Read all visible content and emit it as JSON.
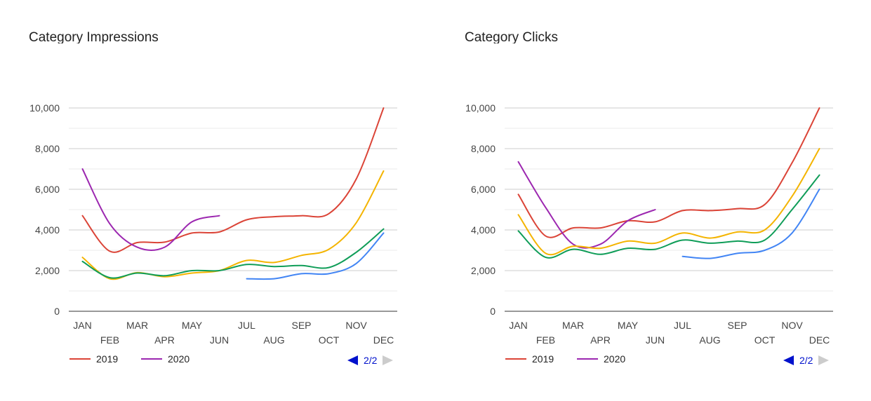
{
  "chart_data": [
    {
      "type": "line",
      "title": "Category Impressions",
      "categories": [
        "JAN",
        "FEB",
        "MAR",
        "APR",
        "MAY",
        "JUN",
        "JUL",
        "AUG",
        "SEP",
        "OCT",
        "NOV",
        "DEC"
      ],
      "ylim": [
        0,
        10000
      ],
      "yticks": [
        "0",
        "2,000",
        "4,000",
        "6,000",
        "8,000",
        "10,000"
      ],
      "grid": true,
      "series": [
        {
          "name": "2019",
          "color": "#db4437",
          "values": [
            4700,
            2950,
            3380,
            3400,
            3850,
            3900,
            4500,
            4650,
            4700,
            4800,
            6500,
            10000
          ]
        },
        {
          "name": "2020",
          "color": "#9c27b0",
          "values": [
            7000,
            4300,
            3150,
            3150,
            4400,
            4700,
            null,
            null,
            null,
            null,
            null,
            null
          ]
        },
        {
          "color": "#f4b400",
          "values": [
            2650,
            1600,
            1900,
            1700,
            1880,
            2000,
            2500,
            2400,
            2750,
            3050,
            4350,
            6900
          ]
        },
        {
          "color": "#0f9d58",
          "values": [
            2450,
            1650,
            1880,
            1750,
            2000,
            2000,
            2300,
            2200,
            2250,
            2150,
            2900,
            4050
          ]
        },
        {
          "color": "#4285f4",
          "values": [
            null,
            null,
            null,
            null,
            null,
            null,
            1600,
            1600,
            1850,
            1850,
            2350,
            3850
          ]
        }
      ],
      "legend_position": "bottom-left",
      "pager": "2/2"
    },
    {
      "type": "line",
      "title": "Category Clicks",
      "categories": [
        "JAN",
        "FEB",
        "MAR",
        "APR",
        "MAY",
        "JUN",
        "JUL",
        "AUG",
        "SEP",
        "OCT",
        "NOV",
        "DEC"
      ],
      "ylim": [
        0,
        10000
      ],
      "yticks": [
        "0",
        "2,000",
        "4,000",
        "6,000",
        "8,000",
        "10,000"
      ],
      "grid": true,
      "series": [
        {
          "name": "2019",
          "color": "#db4437",
          "values": [
            5750,
            3700,
            4100,
            4100,
            4450,
            4400,
            4950,
            4950,
            5050,
            5250,
            7300,
            10000
          ]
        },
        {
          "name": "2020",
          "color": "#9c27b0",
          "values": [
            7350,
            5100,
            3300,
            3300,
            4450,
            5000,
            null,
            null,
            null,
            null,
            null,
            null
          ]
        },
        {
          "color": "#f4b400",
          "values": [
            4750,
            2850,
            3200,
            3100,
            3450,
            3350,
            3850,
            3600,
            3900,
            4000,
            5650,
            8000
          ]
        },
        {
          "color": "#0f9d58",
          "values": [
            3950,
            2650,
            3050,
            2800,
            3100,
            3050,
            3500,
            3350,
            3450,
            3500,
            5000,
            6700
          ]
        },
        {
          "color": "#4285f4",
          "values": [
            null,
            null,
            null,
            null,
            null,
            null,
            2700,
            2600,
            2850,
            3000,
            3850,
            6000
          ]
        }
      ],
      "legend_position": "bottom-left",
      "pager": "2/2"
    }
  ]
}
